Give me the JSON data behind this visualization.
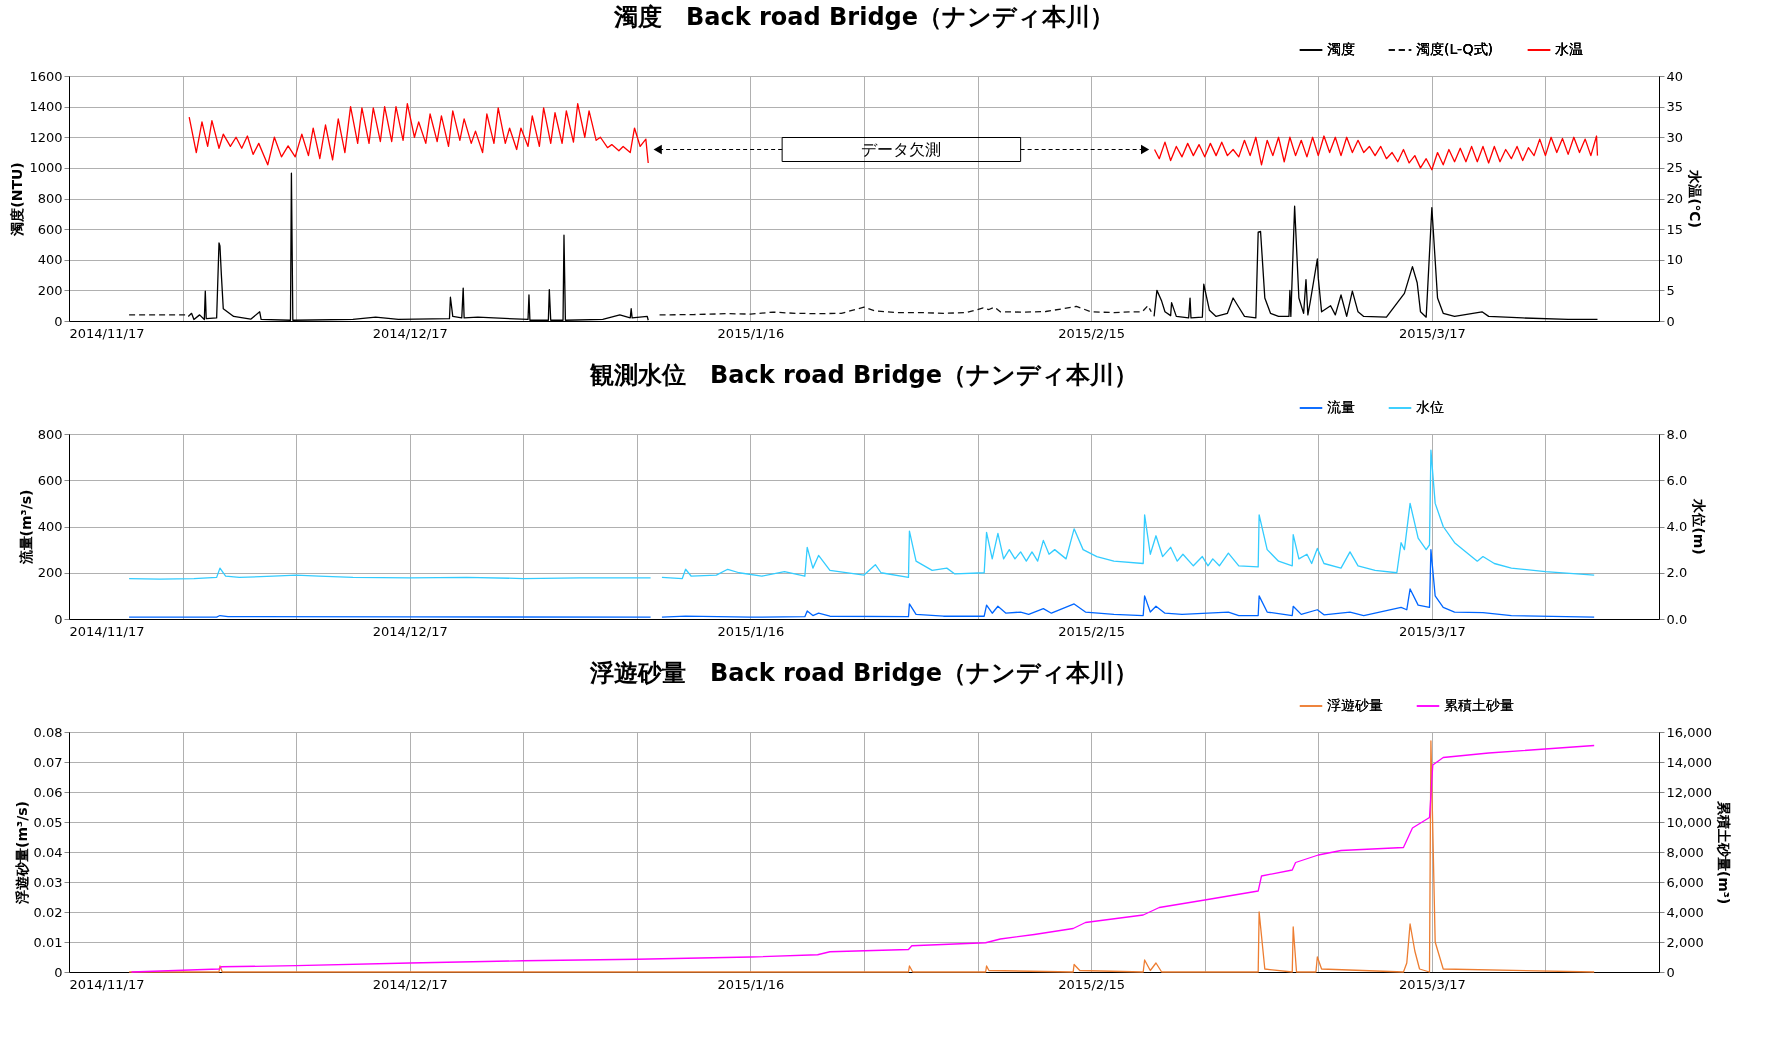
{
  "chart_data": [
    {
      "type": "line",
      "title": "濁度　Back road Bridge（ナンディ本川）",
      "ylabel": "濁度(NTU)",
      "y2label": "水温(℃)",
      "legend": "top right",
      "grid": true,
      "xlim": [
        "2014-11-17",
        "2015-04-06"
      ],
      "xticks": [
        {
          "value": "2014-11-17",
          "label": "2014/11/17"
        },
        {
          "value": "2014-11-27",
          "label": null
        },
        {
          "value": "2014-12-07",
          "label": null
        },
        {
          "value": "2014-12-17",
          "label": "2014/12/17"
        },
        {
          "value": "2014-12-27",
          "label": null
        },
        {
          "value": "2015-01-06",
          "label": null
        },
        {
          "value": "2015-01-16",
          "label": "2015/1/16"
        },
        {
          "value": "2015-01-26",
          "label": null
        },
        {
          "value": "2015-02-05",
          "label": null
        },
        {
          "value": "2015-02-15",
          "label": "2015/2/15"
        },
        {
          "value": "2015-02-25",
          "label": null
        },
        {
          "value": "2015-03-07",
          "label": null
        },
        {
          "value": "2015-03-17",
          "label": "2015/3/17"
        },
        {
          "value": "2015-03-27",
          "label": null
        }
      ],
      "ylim": [
        0,
        1600
      ],
      "yticks": [
        0,
        200,
        400,
        600,
        800,
        1000,
        1200,
        1400,
        1600
      ],
      "y2lim": [
        0,
        40
      ],
      "y2ticks": [
        0,
        5,
        10,
        15,
        20,
        25,
        30,
        35,
        40
      ],
      "annotations": [
        "データ欠測"
      ],
      "series": [
        {
          "name": "濁度",
          "color": "#000000",
          "line_style": "solid",
          "x": [
            "2014-11-27T12:00",
            "2014-11-27T19:00",
            "2014-11-28T00:00",
            "2014-11-28T12:00",
            "2014-11-28T22:00",
            "2014-11-29T00:00",
            "2014-11-29T02:00",
            "2014-11-30T00:00",
            "2014-11-30T05:00",
            "2014-11-30T07:00",
            "2014-11-30T10:00",
            "2014-11-30T14:00",
            "2014-12-01T12:00",
            "2014-12-03T00:00",
            "2014-12-03T19:00",
            "2014-12-03T22:00",
            "2014-12-06T12:00",
            "2014-12-06T14:00",
            "2014-12-06T17:00",
            "2014-12-12T00:00",
            "2014-12-14T00:00",
            "2014-12-16T00:00",
            "2014-12-20T12:00",
            "2014-12-20T14:00",
            "2014-12-20T19:00",
            "2014-12-21T14:00",
            "2014-12-21T17:00",
            "2014-12-21T19:00",
            "2014-12-23T00:00",
            "2014-12-27T10:00",
            "2014-12-27T12:00",
            "2014-12-27T14:00",
            "2014-12-29T05:00",
            "2014-12-29T07:00",
            "2014-12-29T10:00",
            "2014-12-30T12:00",
            "2014-12-30T14:00",
            "2014-12-30T17:00",
            "2015-01-03T00:00",
            "2015-01-04T12:00",
            "2015-01-05T10:00",
            "2015-01-05T12:00",
            "2015-01-05T14:00",
            "2015-01-06T22:00",
            "2015-01-07T00:00",
            "2015-01-07T12:00",
            "2015-02-20T13:00",
            "2015-02-20T19:00",
            "2015-02-21T05:00",
            "2015-02-21T12:00",
            "2015-02-22T00:00",
            "2015-02-22T02:00",
            "2015-02-22T12:00",
            "2015-02-23T14:00",
            "2015-02-23T17:00",
            "2015-02-23T19:00",
            "2015-02-24T19:00",
            "2015-02-24T22:00",
            "2015-02-25T10:00",
            "2015-02-26T00:00",
            "2015-02-27T00:00",
            "2015-02-27T12:00",
            "2015-02-28T00:00",
            "2015-02-28T12:00",
            "2015-03-01T12:00",
            "2015-03-01T17:00",
            "2015-03-01T22:00",
            "2015-03-02T07:00",
            "2015-03-02T19:00",
            "2015-03-03T12:00",
            "2015-03-04T10:00",
            "2015-03-04T12:00",
            "2015-03-04T14:00",
            "2015-03-04T22:00",
            "2015-03-05T07:00",
            "2015-03-05T17:00",
            "2015-03-05T22:00",
            "2015-03-06T02:00",
            "2015-03-06T07:00",
            "2015-03-06T22:00",
            "2015-03-07T00:00",
            "2015-03-07T07:00",
            "2015-03-08T02:00",
            "2015-03-08T12:00",
            "2015-03-09T00:00",
            "2015-03-09T12:00",
            "2015-03-10T00:00",
            "2015-03-10T12:00",
            "2015-03-11T00:00",
            "2015-03-13T00:00",
            "2015-03-14T14:00",
            "2015-03-15T07:00",
            "2015-03-15T17:00",
            "2015-03-16T00:00",
            "2015-03-16T12:00",
            "2015-03-17T00:00",
            "2015-03-17T12:00",
            "2015-03-18T00:00",
            "2015-03-19T00:00",
            "2015-03-21T10:00",
            "2015-03-22T00:00",
            "2015-03-25T00:00",
            "2015-03-29T00:00",
            "2015-03-31T14:00"
          ],
          "values": [
            30,
            50,
            10,
            40,
            10,
            195,
            15,
            20,
            510,
            490,
            300,
            80,
            30,
            12,
            60,
            10,
            5,
            965,
            5,
            10,
            25,
            10,
            15,
            155,
            30,
            20,
            215,
            20,
            25,
            10,
            170,
            5,
            5,
            205,
            5,
            5,
            560,
            5,
            10,
            40,
            20,
            80,
            20,
            30,
            5,
            null,
            30,
            200,
            130,
            60,
            35,
            120,
            30,
            20,
            150,
            20,
            25,
            240,
            70,
            30,
            50,
            150,
            90,
            30,
            20,
            580,
            585,
            150,
            50,
            30,
            30,
            200,
            30,
            750,
            150,
            50,
            270,
            40,
            125,
            405,
            280,
            60,
            100,
            40,
            170,
            30,
            195,
            60,
            30,
            25,
            180,
            355,
            250,
            60,
            25,
            740,
            150,
            50,
            30,
            60,
            30,
            20,
            10,
            10
          ]
        },
        {
          "name": "濁度(L-Q式)",
          "color": "#111111",
          "line_style": "dashed",
          "x": [
            "2014-11-22T07:00",
            "2014-11-27T07:00",
            "2014-11-30T00:00",
            "2015-01-08T00:00",
            "2015-01-11T00:00",
            "2015-01-14T00:00",
            "2015-01-16T00:00",
            "2015-01-18T00:00",
            "2015-01-20T00:00",
            "2015-01-22T00:00",
            "2015-01-24T00:00",
            "2015-01-26T00:00",
            "2015-01-27T00:00",
            "2015-01-29T00:00",
            "2015-01-31T00:00",
            "2015-02-02T00:00",
            "2015-02-04T00:00",
            "2015-02-05T12:00",
            "2015-02-06T00:00",
            "2015-02-06T12:00",
            "2015-02-07T00:00",
            "2015-02-09T00:00",
            "2015-02-11T00:00",
            "2015-02-13T17:00",
            "2015-02-15T00:00",
            "2015-02-17T00:00",
            "2015-02-18T12:00",
            "2015-02-19T12:00",
            "2015-02-20T00:00",
            "2015-02-20T07:00"
          ],
          "values": [
            40,
            40,
            null,
            40,
            42,
            48,
            45,
            58,
            50,
            48,
            50,
            90,
            65,
            55,
            55,
            50,
            55,
            85,
            75,
            90,
            60,
            58,
            62,
            95,
            60,
            55,
            60,
            60,
            100,
            60
          ]
        },
        {
          "name": "水温",
          "color": "#ff0000",
          "line_style": "solid",
          "axis": "y2",
          "x": [
            "2014-11-27T14:00",
            "2014-11-28T05:00",
            "2014-11-28T17:00",
            "2014-11-29T05:00",
            "2014-11-29T14:00",
            "2014-11-30T05:00",
            "2014-11-30T14:00",
            "2014-12-01T05:00",
            "2014-12-01T17:00",
            "2014-12-02T05:00",
            "2014-12-02T17:00",
            "2014-12-03T05:00",
            "2014-12-03T17:00",
            "2014-12-04T12:00",
            "2014-12-05T02:00",
            "2014-12-05T17:00",
            "2014-12-06T07:00",
            "2014-12-06T22:00",
            "2014-12-07T12:00",
            "2014-12-08T02:00",
            "2014-12-08T12:00",
            "2014-12-09T02:00",
            "2014-12-09T14:00",
            "2014-12-10T05:00",
            "2014-12-10T17:00",
            "2014-12-11T07:00",
            "2014-12-11T19:00",
            "2014-12-12T10:00",
            "2014-12-12T19:00",
            "2014-12-13T10:00",
            "2014-12-13T19:00",
            "2014-12-14T10:00",
            "2014-12-14T19:00",
            "2014-12-15T10:00",
            "2014-12-15T19:00",
            "2014-12-16T10:00",
            "2014-12-16T19:00",
            "2014-12-17T10:00",
            "2014-12-17T19:00",
            "2014-12-18T10:00",
            "2014-12-18T19:00",
            "2014-12-19T10:00",
            "2014-12-19T19:00",
            "2014-12-20T10:00",
            "2014-12-20T19:00",
            "2014-12-21T10:00",
            "2014-12-21T19:00",
            "2014-12-22T10:00",
            "2014-12-22T19:00",
            "2014-12-23T10:00",
            "2014-12-23T19:00",
            "2014-12-24T10:00",
            "2014-12-24T19:00",
            "2014-12-25T10:00",
            "2014-12-25T19:00",
            "2014-12-26T10:00",
            "2014-12-26T19:00",
            "2014-12-27T10:00",
            "2014-12-27T19:00",
            "2014-12-28T10:00",
            "2014-12-28T19:00",
            "2014-12-29T10:00",
            "2014-12-29T19:00",
            "2014-12-30T10:00",
            "2014-12-30T19:00",
            "2014-12-31T10:00",
            "2014-12-31T19:00",
            "2015-01-01T10:00",
            "2015-01-01T19:00",
            "2015-01-02T10:00",
            "2015-01-02T19:00",
            "2015-01-03T10:00",
            "2015-01-03T19:00",
            "2015-01-04T10:00",
            "2015-01-04T19:00",
            "2015-01-05T10:00",
            "2015-01-05T19:00",
            "2015-01-06T07:00",
            "2015-01-06T19:00",
            "2015-01-07T00:00",
            "2015-01-07T02:00",
            "2015-02-20T14:00",
            "2015-02-21T00:00",
            "2015-02-21T12:00",
            "2015-02-22T00:00",
            "2015-02-22T12:00",
            "2015-02-23T00:00",
            "2015-02-23T12:00",
            "2015-02-24T00:00",
            "2015-02-24T12:00",
            "2015-02-25T00:00",
            "2015-02-25T12:00",
            "2015-02-26T00:00",
            "2015-02-26T12:00",
            "2015-02-27T00:00",
            "2015-02-27T12:00",
            "2015-02-28T00:00",
            "2015-02-28T12:00",
            "2015-03-01T00:00",
            "2015-03-01T12:00",
            "2015-03-02T00:00",
            "2015-03-02T12:00",
            "2015-03-03T00:00",
            "2015-03-03T12:00",
            "2015-03-04T00:00",
            "2015-03-04T12:00",
            "2015-03-05T00:00",
            "2015-03-05T12:00",
            "2015-03-06T00:00",
            "2015-03-06T12:00",
            "2015-03-07T00:00",
            "2015-03-07T12:00",
            "2015-03-08T00:00",
            "2015-03-08T12:00",
            "2015-03-09T00:00",
            "2015-03-09T12:00",
            "2015-03-10T00:00",
            "2015-03-10T12:00",
            "2015-03-11T00:00",
            "2015-03-11T12:00",
            "2015-03-12T00:00",
            "2015-03-12T12:00",
            "2015-03-13T00:00",
            "2015-03-13T12:00",
            "2015-03-14T00:00",
            "2015-03-14T12:00",
            "2015-03-15T00:00",
            "2015-03-15T12:00",
            "2015-03-16T00:00",
            "2015-03-16T12:00",
            "2015-03-17T00:00",
            "2015-03-17T12:00",
            "2015-03-18T00:00",
            "2015-03-18T12:00",
            "2015-03-19T00:00",
            "2015-03-19T12:00",
            "2015-03-20T00:00",
            "2015-03-20T12:00",
            "2015-03-21T00:00",
            "2015-03-21T12:00",
            "2015-03-22T00:00",
            "2015-03-22T12:00",
            "2015-03-23T00:00",
            "2015-03-23T12:00",
            "2015-03-24T00:00",
            "2015-03-24T12:00",
            "2015-03-25T00:00",
            "2015-03-25T12:00",
            "2015-03-26T00:00",
            "2015-03-26T12:00",
            "2015-03-27T00:00",
            "2015-03-27T12:00",
            "2015-03-28T00:00",
            "2015-03-28T12:00",
            "2015-03-29T00:00",
            "2015-03-29T12:00",
            "2015-03-30T00:00",
            "2015-03-30T12:00",
            "2015-03-31T00:00",
            "2015-03-31T12:00",
            "2015-03-31T14:00"
          ],
          "values": [
            33.3,
            27.5,
            32.5,
            28.5,
            32.7,
            28.2,
            30.5,
            28.5,
            30,
            28.2,
            30.2,
            27.2,
            29,
            25.5,
            30,
            26.8,
            28.6,
            26.8,
            30.5,
            27,
            31.5,
            26.5,
            32,
            26.3,
            33,
            27.5,
            35,
            29,
            34.8,
            29,
            34.8,
            29.3,
            35,
            29.3,
            35,
            29.5,
            35.5,
            30,
            32.5,
            29,
            33.8,
            29.3,
            33.5,
            28.5,
            34.3,
            29.5,
            33,
            29,
            31,
            27.5,
            33.8,
            29,
            34.8,
            29,
            31.5,
            28,
            31.5,
            28.5,
            33.5,
            28.5,
            34.8,
            29,
            34,
            29,
            34.3,
            29.2,
            35.5,
            30,
            34.3,
            29.5,
            30,
            28.3,
            28.8,
            27.8,
            28.5,
            27.5,
            31.5,
            28.5,
            29.7,
            25.8,
            null,
            28,
            26.5,
            29.2,
            26.2,
            28.5,
            26.8,
            29,
            27,
            28.8,
            26.8,
            29,
            27,
            29.2,
            27,
            28,
            26.8,
            29.5,
            27,
            30,
            25.5,
            29.5,
            27,
            30,
            26,
            30,
            27,
            29.5,
            26.8,
            30,
            27,
            30.2,
            27.5,
            30,
            27,
            30,
            27.5,
            29.5,
            27.5,
            28.5,
            27,
            28.5,
            26.5,
            27.5,
            26,
            28,
            25.8,
            27,
            25,
            26.5,
            24.7,
            27.5,
            25.5,
            28,
            26,
            28.2,
            26,
            28.5,
            26,
            28.5,
            25.8,
            28.5,
            26,
            28,
            26.5,
            28.5,
            26.2,
            28.3,
            27,
            29.7,
            27,
            30,
            27.5,
            29.8,
            27.2,
            30,
            27.5,
            29.7,
            27,
            30.2,
            27
          ]
        }
      ]
    },
    {
      "type": "line",
      "title": "観測水位　Back road Bridge（ナンディ本川）",
      "ylabel": "流量(m³/s)",
      "y2label": "水位(m)",
      "legend": "top right",
      "grid": true,
      "xlim": [
        "2014-11-17",
        "2015-04-06"
      ],
      "xticks": [
        {
          "value": "2014-11-17",
          "label": "2014/11/17"
        },
        {
          "value": "2014-11-27",
          "label": null
        },
        {
          "value": "2014-12-07",
          "label": null
        },
        {
          "value": "2014-12-17",
          "label": "2014/12/17"
        },
        {
          "value": "2014-12-27",
          "label": null
        },
        {
          "value": "2015-01-06",
          "label": null
        },
        {
          "value": "2015-01-16",
          "label": "2015/1/16"
        },
        {
          "value": "2015-01-26",
          "label": null
        },
        {
          "value": "2015-02-05",
          "label": null
        },
        {
          "value": "2015-02-15",
          "label": "2015/2/15"
        },
        {
          "value": "2015-02-25",
          "label": null
        },
        {
          "value": "2015-03-07",
          "label": null
        },
        {
          "value": "2015-03-17",
          "label": "2015/3/17"
        },
        {
          "value": "2015-03-27",
          "label": null
        }
      ],
      "ylim": [
        0,
        800
      ],
      "yticks": [
        0,
        200,
        400,
        600,
        800
      ],
      "y2lim": [
        0,
        8
      ],
      "y2ticks": [
        {
          "value": 0,
          "label": "0.0"
        },
        {
          "value": 2,
          "label": "2.0"
        },
        {
          "value": 4,
          "label": "4.0"
        },
        {
          "value": 6,
          "label": "6.0"
        },
        {
          "value": 8,
          "label": "8.0"
        }
      ],
      "series": [
        {
          "name": "流量",
          "color": "#0066ff",
          "line_style": "solid",
          "x": [
            "2014-11-22T07:00",
            "2014-11-30T00:00",
            "2014-11-30T07:00",
            "2014-12-01T00:00",
            "2014-12-17T00:00",
            "2015-01-07T05:00",
            "2015-01-07T17:00",
            "2015-01-08T05:00",
            "2015-01-10T07:00",
            "2015-01-16T00:00",
            "2015-01-20T19:00",
            "2015-01-21T00:00",
            "2015-01-21T12:00",
            "2015-01-22T00:00",
            "2015-01-23T00:00",
            "2015-01-29T22:00",
            "2015-01-30T00:00",
            "2015-01-30T14:00",
            "2015-02-02T00:00",
            "2015-02-05T14:00",
            "2015-02-05T19:00",
            "2015-02-06T07:00",
            "2015-02-06T19:00",
            "2015-02-07T12:00",
            "2015-02-08T19:00",
            "2015-02-09T12:00",
            "2015-02-10T19:00",
            "2015-02-11T12:00",
            "2015-02-13T12:00",
            "2015-02-14T12:00",
            "2015-02-17T00:00",
            "2015-02-19T14:00",
            "2015-02-19T17:00",
            "2015-02-20T05:00",
            "2015-02-20T17:00",
            "2015-02-21T12:00",
            "2015-02-23T00:00",
            "2015-02-27T02:00",
            "2015-02-28T00:00",
            "2015-03-01T17:00",
            "2015-03-01T19:00",
            "2015-03-02T12:00",
            "2015-03-04T17:00",
            "2015-03-04T19:00",
            "2015-03-05T12:00",
            "2015-03-06T22:00",
            "2015-03-07T12:00",
            "2015-03-09T19:00",
            "2015-03-11T00:00",
            "2015-03-14T07:00",
            "2015-03-14T19:00",
            "2015-03-15T02:00",
            "2015-03-15T19:00",
            "2015-03-16T19:00",
            "2015-03-16T22:00",
            "2015-03-17T07:00",
            "2015-03-18T00:00",
            "2015-03-19T00:00",
            "2015-03-21T12:00",
            "2015-03-24T00:00",
            "2015-03-31T07:00"
          ],
          "values": [
            8,
            8,
            15,
            10,
            9,
            8,
            null,
            8,
            12,
            8,
            10,
            35,
            15,
            25,
            12,
            10,
            65,
            20,
            12,
            12,
            60,
            25,
            55,
            25,
            30,
            20,
            45,
            25,
            65,
            30,
            20,
            15,
            100,
            30,
            55,
            25,
            20,
            30,
            15,
            15,
            100,
            30,
            15,
            55,
            20,
            40,
            18,
            30,
            15,
            50,
            40,
            130,
            60,
            50,
            300,
            100,
            50,
            30,
            28,
            15,
            8
          ]
        },
        {
          "name": "水位",
          "color": "#33ccff",
          "line_style": "solid",
          "axis": "y2",
          "x": [
            "2014-11-22T07:00",
            "2014-11-25T00:00",
            "2014-11-28T00:00",
            "2014-11-30T00:00",
            "2014-11-30T07:00",
            "2014-11-30T19:00",
            "2014-12-02T00:00",
            "2014-12-05T00:00",
            "2014-12-07T00:00",
            "2014-12-09T00:00",
            "2014-12-12T00:00",
            "2014-12-17T00:00",
            "2014-12-22T00:00",
            "2014-12-27T00:00",
            "2015-01-01T00:00",
            "2015-01-07T05:00",
            "2015-01-07T17:00",
            "2015-01-08T05:00",
            "2015-01-10T00:00",
            "2015-01-10T07:00",
            "2015-01-10T19:00",
            "2015-01-13T00:00",
            "2015-01-14T00:00",
            "2015-01-15T00:00",
            "2015-01-17T00:00",
            "2015-01-19T00:00",
            "2015-01-20T19:00",
            "2015-01-21T00:00",
            "2015-01-21T12:00",
            "2015-01-22T00:00",
            "2015-01-23T00:00",
            "2015-01-26T00:00",
            "2015-01-27T00:00",
            "2015-01-27T12:00",
            "2015-01-29T22:00",
            "2015-01-30T00:00",
            "2015-01-30T14:00",
            "2015-02-01T00:00",
            "2015-02-02T07:00",
            "2015-02-03T00:00",
            "2015-02-05T14:00",
            "2015-02-05T19:00",
            "2015-02-06T07:00",
            "2015-02-06T19:00",
            "2015-02-07T07:00",
            "2015-02-07T19:00",
            "2015-02-08T07:00",
            "2015-02-08T19:00",
            "2015-02-09T07:00",
            "2015-02-09T19:00",
            "2015-02-10T07:00",
            "2015-02-10T19:00",
            "2015-02-11T07:00",
            "2015-02-11T19:00",
            "2015-02-12T19:00",
            "2015-02-13T12:00",
            "2015-02-14T07:00",
            "2015-02-15T12:00",
            "2015-02-17T00:00",
            "2015-02-19T14:00",
            "2015-02-19T17:00",
            "2015-02-20T05:00",
            "2015-02-20T17:00",
            "2015-02-21T07:00",
            "2015-02-22T00:00",
            "2015-02-22T14:00",
            "2015-02-23T02:00",
            "2015-02-24T00:00",
            "2015-02-24T19:00",
            "2015-02-25T07:00",
            "2015-02-25T17:00",
            "2015-02-26T07:00",
            "2015-02-27T02:00",
            "2015-02-28T00:00",
            "2015-03-01T17:00",
            "2015-03-01T19:00",
            "2015-03-02T12:00",
            "2015-03-03T12:00",
            "2015-03-04T17:00",
            "2015-03-04T19:00",
            "2015-03-05T07:00",
            "2015-03-06T00:00",
            "2015-03-06T10:00",
            "2015-03-06T22:00",
            "2015-03-07T12:00",
            "2015-03-09T00:00",
            "2015-03-09T19:00",
            "2015-03-10T12:00",
            "2015-03-12T00:00",
            "2015-03-13T22:00",
            "2015-03-14T07:00",
            "2015-03-14T14:00",
            "2015-03-15T02:00",
            "2015-03-15T19:00",
            "2015-03-16T12:00",
            "2015-03-16T19:00",
            "2015-03-16T22:00",
            "2015-03-17T07:00",
            "2015-03-18T00:00",
            "2015-03-19T00:00",
            "2015-03-20T00:00",
            "2015-03-21T00:00",
            "2015-03-21T12:00",
            "2015-03-22T12:00",
            "2015-03-24T00:00",
            "2015-03-27T00:00",
            "2015-03-31T07:00"
          ],
          "values": [
            1.75,
            1.72,
            1.75,
            1.8,
            2.2,
            1.85,
            1.8,
            1.85,
            1.9,
            1.85,
            1.8,
            1.78,
            1.8,
            1.75,
            1.78,
            1.78,
            null,
            1.8,
            1.75,
            2.15,
            1.85,
            1.9,
            2.15,
            2.0,
            1.85,
            2.05,
            1.85,
            3.1,
            2.2,
            2.75,
            2.1,
            1.9,
            2.35,
            2.0,
            1.8,
            3.8,
            2.5,
            2.1,
            2.2,
            1.95,
            2.0,
            3.75,
            2.6,
            3.7,
            2.6,
            3.0,
            2.6,
            2.9,
            2.5,
            2.9,
            2.5,
            3.4,
            2.8,
            3.0,
            2.6,
            3.9,
            3.0,
            2.7,
            2.5,
            2.4,
            4.5,
            2.8,
            3.6,
            2.7,
            3.1,
            2.5,
            2.8,
            2.3,
            2.7,
            2.3,
            2.6,
            2.3,
            2.85,
            2.3,
            2.25,
            4.5,
            3.0,
            2.5,
            2.3,
            3.65,
            2.6,
            2.8,
            2.4,
            3.05,
            2.4,
            2.2,
            2.9,
            2.3,
            2.1,
            2.0,
            3.3,
            3.0,
            5.0,
            3.5,
            3.0,
            3.2,
            7.3,
            5.0,
            4.0,
            3.3,
            2.9,
            2.5,
            2.7,
            2.4,
            2.2,
            2.05,
            1.9
          ]
        }
      ]
    },
    {
      "type": "line",
      "title": "浮遊砂量　Back road Bridge（ナンディ本川）",
      "ylabel": "浮遊砂量(m³/s)",
      "y2label": "累積土砂量(m³)",
      "legend": "top right",
      "grid": true,
      "xlim": [
        "2014-11-17",
        "2015-04-06"
      ],
      "xticks": [
        {
          "value": "2014-11-17",
          "label": "2014/11/17"
        },
        {
          "value": "2014-11-27",
          "label": null
        },
        {
          "value": "2014-12-07",
          "label": null
        },
        {
          "value": "2014-12-17",
          "label": "2014/12/17"
        },
        {
          "value": "2014-12-27",
          "label": null
        },
        {
          "value": "2015-01-06",
          "label": null
        },
        {
          "value": "2015-01-16",
          "label": "2015/1/16"
        },
        {
          "value": "2015-01-26",
          "label": null
        },
        {
          "value": "2015-02-05",
          "label": null
        },
        {
          "value": "2015-02-15",
          "label": "2015/2/15"
        },
        {
          "value": "2015-02-25",
          "label": null
        },
        {
          "value": "2015-03-07",
          "label": null
        },
        {
          "value": "2015-03-17",
          "label": "2015/3/17"
        },
        {
          "value": "2015-03-27",
          "label": null
        }
      ],
      "ylim": [
        0,
        0.08
      ],
      "yticks": [
        0,
        0.01,
        0.02,
        0.03,
        0.04,
        0.05,
        0.06,
        0.07,
        0.08
      ],
      "y2lim": [
        0,
        16000
      ],
      "y2ticks": [
        0,
        {
          "value": 2000,
          "label": "2,000"
        },
        {
          "value": 4000,
          "label": "4,000"
        },
        {
          "value": 6000,
          "label": "6,000"
        },
        {
          "value": 8000,
          "label": "8,000"
        },
        {
          "value": 10000,
          "label": "10,000"
        },
        {
          "value": 12000,
          "label": "12,000"
        },
        {
          "value": 14000,
          "label": "14,000"
        },
        {
          "value": 16000,
          "label": "16,000"
        }
      ],
      "series": [
        {
          "name": "浮遊砂量",
          "color": "#ed7d31",
          "line_style": "solid",
          "x": [
            "2014-11-22T07:00",
            "2014-11-30T05:00",
            "2014-11-30T07:00",
            "2014-11-30T12:00",
            "2015-01-29T22:00",
            "2015-01-30T00:00",
            "2015-01-30T07:00",
            "2015-02-05T17:00",
            "2015-02-05T19:00",
            "2015-02-06T00:00",
            "2015-02-13T10:00",
            "2015-02-13T12:00",
            "2015-02-14T00:00",
            "2015-02-19T14:00",
            "2015-02-19T17:00",
            "2015-02-20T05:00",
            "2015-02-20T17:00",
            "2015-02-21T05:00",
            "2015-03-01T17:00",
            "2015-03-01T19:00",
            "2015-03-02T07:00",
            "2015-03-04T17:00",
            "2015-03-04T19:00",
            "2015-03-05T02:00",
            "2015-03-06T19:00",
            "2015-03-06T22:00",
            "2015-03-07T07:00",
            "2015-03-14T12:00",
            "2015-03-14T19:00",
            "2015-03-15T02:00",
            "2015-03-15T12:00",
            "2015-03-15T22:00",
            "2015-03-16T19:00",
            "2015-03-16T22:00",
            "2015-03-17T07:00",
            "2015-03-18T00:00",
            "2015-03-31T07:00"
          ],
          "values": [
            0,
            0,
            0.002,
            0,
            0,
            0.002,
            0,
            0,
            0.002,
            0.0005,
            0,
            0.0025,
            0.0005,
            0,
            0.004,
            0.0005,
            0.003,
            0,
            0,
            0.02,
            0.001,
            0,
            0.015,
            0,
            0,
            0.005,
            0.001,
            0,
            0.003,
            0.016,
            0.007,
            0.001,
            0,
            0.077,
            0.01,
            0.001,
            0
          ]
        },
        {
          "name": "累積土砂量",
          "color": "#ff00ff",
          "line_style": "solid",
          "axis": "y2",
          "x": [
            "2014-11-22T12:00",
            "2014-11-30T05:00",
            "2014-11-30T10:00",
            "2014-12-07T00:00",
            "2014-12-17T00:00",
            "2014-12-27T00:00",
            "2015-01-06T00:00",
            "2015-01-16T00:00",
            "2015-01-21T22:00",
            "2015-01-23T00:00",
            "2015-01-29T22:00",
            "2015-01-30T05:00",
            "2015-02-05T17:00",
            "2015-02-07T00:00",
            "2015-02-10T00:00",
            "2015-02-13T10:00",
            "2015-02-14T12:00",
            "2015-02-19T14:00",
            "2015-02-21T00:00",
            "2015-02-25T00:00",
            "2015-03-01T17:00",
            "2015-03-02T00:00",
            "2015-03-04T17:00",
            "2015-03-05T00:00",
            "2015-03-07T00:00",
            "2015-03-09T00:00",
            "2015-03-14T12:00",
            "2015-03-15T07:00",
            "2015-03-16T19:00",
            "2015-03-17T02:00",
            "2015-03-18T00:00",
            "2015-03-22T00:00",
            "2015-03-31T07:00"
          ],
          "values": [
            0,
            200,
            350,
            420,
            600,
            750,
            850,
            1000,
            1150,
            1350,
            1500,
            1750,
            1950,
            2200,
            2500,
            2900,
            3300,
            3800,
            4300,
            4800,
            5400,
            6400,
            6800,
            7300,
            7800,
            8100,
            8300,
            9600,
            10300,
            13800,
            14300,
            14600,
            15100
          ]
        }
      ]
    }
  ]
}
